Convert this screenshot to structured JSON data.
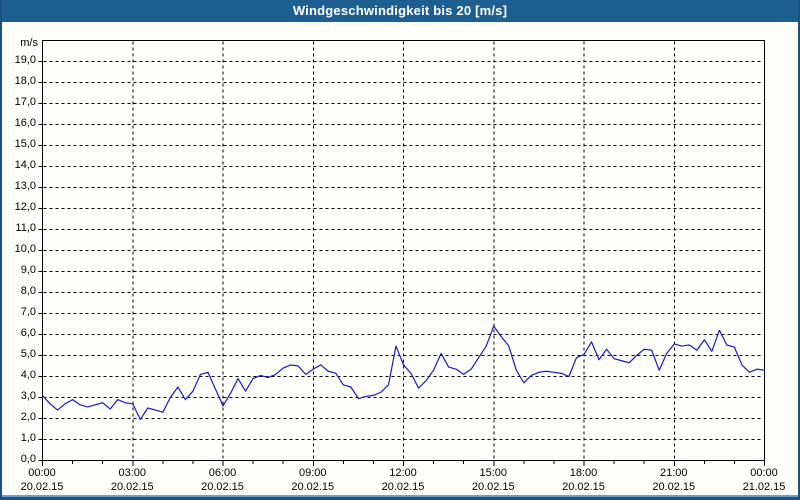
{
  "window": {
    "title": "Windgeschwindigkeit bis 20 [m/s]"
  },
  "colors": {
    "title_bar_bg": "#1E5F92",
    "title_text": "#FFFFFF",
    "frame_border": "#1A5180",
    "frame_border_inner": "#6FA0C8",
    "plot_bg": "#FEFEFB",
    "grid": "#000000",
    "series_line": "#1A1AC0",
    "tick_text": "#000000"
  },
  "chart_data": {
    "type": "line",
    "title": "Windgeschwindigkeit bis 20 [m/s]",
    "ylabel": "m/s",
    "ylim": [
      0,
      20
    ],
    "ytick_step": 1,
    "ytick_labels_top_to_bottom": [
      "19,0",
      "18,0",
      "17,0",
      "16,0",
      "15,0",
      "14,0",
      "13,0",
      "12,0",
      "11,0",
      "10,0",
      "9,0",
      "8,0",
      "7,0",
      "6,0",
      "5,0",
      "4,0",
      "3,0",
      "2,0",
      "1,0",
      "0,0"
    ],
    "xlim_hours": [
      0,
      24
    ],
    "x_major_step_hours": 3,
    "x_minor_step_hours": 1,
    "xticks": [
      {
        "time": "00:00",
        "date": "20.02.15"
      },
      {
        "time": "03:00",
        "date": "20.02.15"
      },
      {
        "time": "06:00",
        "date": "20.02.15"
      },
      {
        "time": "09:00",
        "date": "20.02.15"
      },
      {
        "time": "12:00",
        "date": "20.02.15"
      },
      {
        "time": "15:00",
        "date": "20.02.15"
      },
      {
        "time": "18:00",
        "date": "20.02.15"
      },
      {
        "time": "21:00",
        "date": "20.02.15"
      },
      {
        "time": "00:00",
        "date": "21.02.15"
      }
    ],
    "grid": "dashed",
    "legend": "none",
    "series": [
      {
        "name": "Windgeschwindigkeit",
        "unit": "m/s",
        "start_hour": 0,
        "sample_interval_hours": 0.25,
        "values": [
          3.1,
          2.7,
          2.4,
          2.7,
          2.9,
          2.65,
          2.55,
          2.65,
          2.75,
          2.45,
          2.9,
          2.75,
          2.7,
          1.95,
          2.5,
          2.4,
          2.3,
          3.0,
          3.5,
          2.9,
          3.3,
          4.1,
          4.2,
          3.4,
          2.6,
          3.2,
          3.9,
          3.3,
          3.9,
          4.05,
          3.95,
          4.1,
          4.4,
          4.55,
          4.5,
          4.1,
          4.35,
          4.55,
          4.25,
          4.15,
          3.6,
          3.5,
          2.95,
          3.05,
          3.1,
          3.25,
          3.6,
          5.45,
          4.55,
          4.15,
          3.45,
          3.8,
          4.3,
          5.1,
          4.45,
          4.35,
          4.1,
          4.35,
          4.9,
          5.45,
          6.4,
          5.9,
          5.45,
          4.3,
          3.7,
          4.05,
          4.2,
          4.25,
          4.2,
          4.15,
          4.0,
          4.9,
          5.05,
          5.65,
          4.8,
          5.3,
          4.85,
          4.75,
          4.65,
          5.0,
          5.3,
          5.25,
          4.3,
          5.1,
          5.55,
          5.45,
          5.5,
          5.25,
          5.75,
          5.2,
          6.2,
          5.5,
          5.4,
          4.55,
          4.2,
          4.35,
          4.3
        ]
      }
    ]
  }
}
